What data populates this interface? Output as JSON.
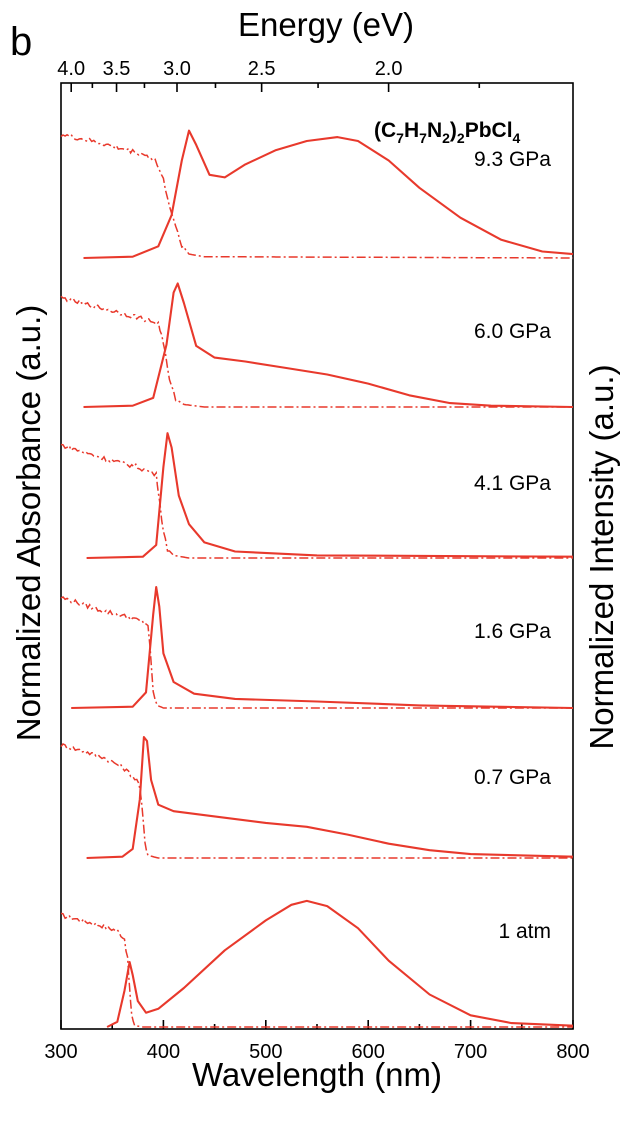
{
  "panel_letter": "b",
  "compound": {
    "prefix": "(C",
    "s1": "7",
    "m1": "H",
    "s2": "7",
    "m2": "N",
    "s3": "2",
    "m3": ")",
    "s4": "2",
    "m4": "PbCl",
    "s5": "4"
  },
  "colors": {
    "curve": "#e8392c",
    "right_axis_title": "#e8392c",
    "axes": "#000000"
  },
  "chart_data": {
    "type": "line",
    "xlabel": "Wavelength (nm)",
    "ylabel_left": "Normalized Absorbance (a.u.)",
    "ylabel_right": "Normalized Intensity (a.u.)",
    "top_axis_label": "Energy (eV)",
    "xlim": [
      300,
      800
    ],
    "x_ticks": [
      300,
      400,
      500,
      600,
      700,
      800
    ],
    "x_tick_labels": [
      "300",
      "400",
      "500",
      "600",
      "700",
      "800"
    ],
    "top_ticks_eV": [
      4.0,
      3.5,
      3.0,
      2.5,
      2.0
    ],
    "top_tick_labels": [
      "4.0",
      "3.5",
      "3.0",
      "2.5",
      "2.0"
    ],
    "layout": "vertically offset stacked spectra (PL solid, absorbance dash-dot)",
    "series": [
      {
        "name": "1 atm",
        "absorbance": [
          [
            300,
            0.86
          ],
          [
            340,
            0.78
          ],
          [
            355,
            0.74
          ],
          [
            362,
            0.68
          ],
          [
            365,
            0.52
          ],
          [
            367,
            0.3
          ],
          [
            369,
            0.08
          ],
          [
            372,
            0.01
          ],
          [
            380,
            0
          ],
          [
            800,
            0
          ]
        ],
        "pl": [
          [
            345,
            0
          ],
          [
            355,
            0.04
          ],
          [
            362,
            0.28
          ],
          [
            367,
            0.5
          ],
          [
            370,
            0.4
          ],
          [
            375,
            0.2
          ],
          [
            383,
            0.11
          ],
          [
            395,
            0.14
          ],
          [
            420,
            0.3
          ],
          [
            460,
            0.59
          ],
          [
            500,
            0.82
          ],
          [
            525,
            0.94
          ],
          [
            540,
            0.97
          ],
          [
            560,
            0.93
          ],
          [
            590,
            0.76
          ],
          [
            620,
            0.51
          ],
          [
            660,
            0.25
          ],
          [
            700,
            0.09
          ],
          [
            740,
            0.03
          ],
          [
            800,
            0.01
          ]
        ]
      },
      {
        "name": "0.7 GPa",
        "absorbance": [
          [
            300,
            0.87
          ],
          [
            340,
            0.78
          ],
          [
            360,
            0.7
          ],
          [
            370,
            0.63
          ],
          [
            376,
            0.58
          ],
          [
            379,
            0.4
          ],
          [
            382,
            0.12
          ],
          [
            385,
            0.02
          ],
          [
            395,
            0
          ],
          [
            800,
            0
          ]
        ],
        "pl": [
          [
            325,
            0
          ],
          [
            360,
            0.01
          ],
          [
            370,
            0.07
          ],
          [
            377,
            0.45
          ],
          [
            381,
            0.93
          ],
          [
            384,
            0.9
          ],
          [
            388,
            0.6
          ],
          [
            395,
            0.41
          ],
          [
            410,
            0.36
          ],
          [
            450,
            0.32
          ],
          [
            500,
            0.27
          ],
          [
            540,
            0.24
          ],
          [
            580,
            0.18
          ],
          [
            620,
            0.11
          ],
          [
            660,
            0.06
          ],
          [
            700,
            0.03
          ],
          [
            800,
            0.01
          ]
        ]
      },
      {
        "name": "1.6 GPa",
        "absorbance": [
          [
            300,
            0.85
          ],
          [
            340,
            0.75
          ],
          [
            370,
            0.69
          ],
          [
            385,
            0.64
          ],
          [
            387,
            0.45
          ],
          [
            390,
            0.12
          ],
          [
            394,
            0.02
          ],
          [
            400,
            0
          ],
          [
            800,
            0
          ]
        ],
        "pl": [
          [
            310,
            0
          ],
          [
            370,
            0.01
          ],
          [
            383,
            0.12
          ],
          [
            390,
            0.72
          ],
          [
            393,
            0.93
          ],
          [
            396,
            0.78
          ],
          [
            400,
            0.42
          ],
          [
            410,
            0.2
          ],
          [
            430,
            0.11
          ],
          [
            470,
            0.07
          ],
          [
            550,
            0.05
          ],
          [
            650,
            0.02
          ],
          [
            800,
            0
          ]
        ]
      },
      {
        "name": "4.1 GPa",
        "absorbance": [
          [
            300,
            0.87
          ],
          [
            340,
            0.77
          ],
          [
            375,
            0.7
          ],
          [
            393,
            0.64
          ],
          [
            395,
            0.52
          ],
          [
            400,
            0.2
          ],
          [
            404,
            0.07
          ],
          [
            410,
            0.02
          ],
          [
            425,
            0
          ],
          [
            800,
            0
          ]
        ],
        "pl": [
          [
            325,
            0
          ],
          [
            380,
            0.01
          ],
          [
            393,
            0.1
          ],
          [
            400,
            0.7
          ],
          [
            404,
            0.96
          ],
          [
            408,
            0.85
          ],
          [
            415,
            0.48
          ],
          [
            425,
            0.26
          ],
          [
            440,
            0.12
          ],
          [
            470,
            0.05
          ],
          [
            550,
            0.02
          ],
          [
            800,
            0.01
          ]
        ]
      },
      {
        "name": "6.0 GPa",
        "absorbance": [
          [
            300,
            0.84
          ],
          [
            340,
            0.76
          ],
          [
            380,
            0.68
          ],
          [
            395,
            0.64
          ],
          [
            400,
            0.5
          ],
          [
            406,
            0.2
          ],
          [
            412,
            0.06
          ],
          [
            420,
            0.02
          ],
          [
            440,
            0
          ],
          [
            800,
            0
          ]
        ],
        "pl": [
          [
            322,
            0
          ],
          [
            370,
            0.01
          ],
          [
            390,
            0.07
          ],
          [
            403,
            0.48
          ],
          [
            410,
            0.88
          ],
          [
            414,
            0.95
          ],
          [
            420,
            0.8
          ],
          [
            432,
            0.47
          ],
          [
            450,
            0.38
          ],
          [
            480,
            0.35
          ],
          [
            520,
            0.3
          ],
          [
            560,
            0.25
          ],
          [
            600,
            0.18
          ],
          [
            640,
            0.09
          ],
          [
            680,
            0.03
          ],
          [
            720,
            0.01
          ],
          [
            800,
            0
          ]
        ]
      },
      {
        "name": "9.3 GPa",
        "absorbance": [
          [
            300,
            0.95
          ],
          [
            340,
            0.88
          ],
          [
            380,
            0.8
          ],
          [
            392,
            0.75
          ],
          [
            400,
            0.6
          ],
          [
            410,
            0.28
          ],
          [
            418,
            0.1
          ],
          [
            425,
            0.03
          ],
          [
            440,
            0.01
          ],
          [
            800,
            0
          ]
        ],
        "pl": [
          [
            322,
            0
          ],
          [
            370,
            0.01
          ],
          [
            395,
            0.09
          ],
          [
            408,
            0.33
          ],
          [
            418,
            0.75
          ],
          [
            425,
            0.98
          ],
          [
            432,
            0.87
          ],
          [
            445,
            0.64
          ],
          [
            460,
            0.62
          ],
          [
            480,
            0.72
          ],
          [
            510,
            0.83
          ],
          [
            540,
            0.9
          ],
          [
            570,
            0.93
          ],
          [
            590,
            0.9
          ],
          [
            620,
            0.75
          ],
          [
            650,
            0.54
          ],
          [
            690,
            0.31
          ],
          [
            730,
            0.14
          ],
          [
            770,
            0.05
          ],
          [
            800,
            0.03
          ]
        ]
      }
    ]
  }
}
